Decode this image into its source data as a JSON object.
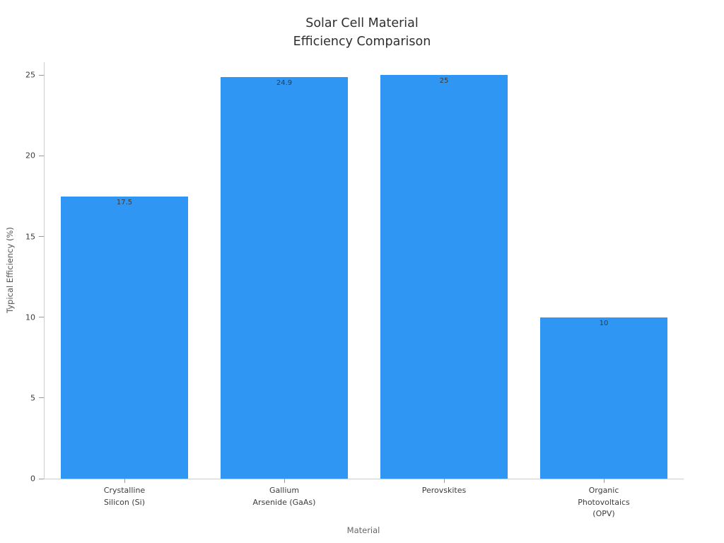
{
  "chart_data": {
    "type": "bar",
    "title": "Solar Cell Material\nEfficiency Comparison",
    "xlabel": "Material",
    "ylabel": "Typical Efficiency (%)",
    "categories": [
      "Crystalline\nSilicon (Si)",
      "Gallium\nArsenide (GaAs)",
      "Perovskites",
      "Organic\nPhotovoltaics\n(OPV)"
    ],
    "values": [
      17.5,
      24.9,
      25,
      10
    ],
    "value_labels": [
      "17.5",
      "24.9",
      "25",
      "10"
    ],
    "yticks": [
      0,
      5,
      10,
      15,
      20,
      25
    ],
    "ylim": [
      0,
      25.8
    ],
    "grid": false,
    "legend": null,
    "bar_color": "#2f96f3",
    "tick_label_color": "#3b3b3b",
    "value_label_color": "#3a3a3a",
    "bar_width_fraction": 0.8
  }
}
